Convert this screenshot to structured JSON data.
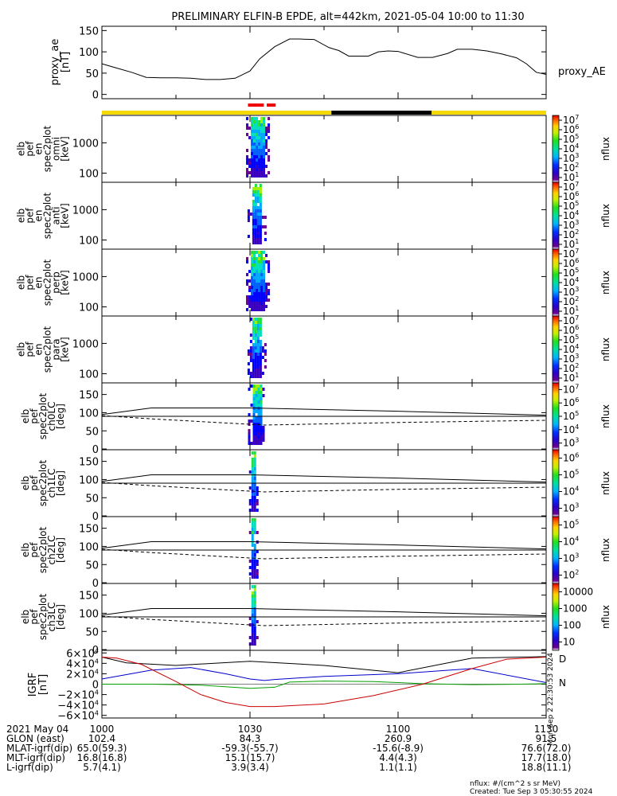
{
  "title": "PRELIMINARY ELFIN-B EPDE, alt=442km, 2021-05-04 10:00 to 11:30",
  "colors": {
    "bar_yellow": "#f5d800",
    "bar_black": "#000000",
    "bar_red": "#ee0000",
    "bx": "#0000cc",
    "by": "#00a000",
    "bz": "#cc0000",
    "bt": "#000000"
  },
  "chart_data": [
    {
      "type": "line",
      "id": "proxy_ae",
      "ylabel": [
        "proxy_ae",
        "[nT]"
      ],
      "ytick_labels": [
        "0",
        "50",
        "100",
        "150"
      ],
      "yticks": [
        0,
        50,
        100,
        150
      ],
      "ylim": [
        -10,
        160
      ],
      "xlim": [
        0,
        90
      ],
      "legend": "proxy_AE",
      "x": [
        0,
        3,
        6,
        9,
        12,
        15,
        18,
        21,
        24,
        27,
        30,
        32,
        35,
        38,
        40,
        43,
        46,
        48,
        50,
        54,
        56,
        58,
        60,
        64,
        67,
        70,
        72,
        75,
        78,
        81,
        84,
        86,
        88,
        90
      ],
      "values": [
        72,
        62,
        52,
        40,
        39,
        39,
        38,
        35,
        35,
        38,
        55,
        84,
        112,
        130,
        130,
        129,
        110,
        103,
        90,
        90,
        100,
        102,
        101,
        87,
        87,
        96,
        106,
        106,
        102,
        95,
        86,
        72,
        52,
        47
      ]
    },
    {
      "type": "heatmap",
      "id": "quality_bar",
      "segments": [
        {
          "from": 0,
          "to": 46.5,
          "color": "yellow"
        },
        {
          "from": 46.5,
          "to": 66.8,
          "color": "black"
        },
        {
          "from": 66.8,
          "to": 90,
          "color": "yellow"
        }
      ],
      "markers": [
        {
          "from": 29.6,
          "to": 32.8,
          "color": "red"
        },
        {
          "from": 33.4,
          "to": 35.2,
          "color": "red"
        }
      ]
    },
    {
      "type": "heatmap",
      "id": "omni",
      "ylabel": [
        "elb",
        "pef",
        "en",
        "spec2plot",
        "omni",
        "[keV]"
      ],
      "ytick_labels": [
        "100",
        "1000"
      ],
      "yticks": [
        100,
        1000
      ],
      "ylim_log": [
        50,
        8000
      ],
      "zlabel": "nflux",
      "ztick_labels": [
        "10",
        "10",
        "10",
        "10",
        "10",
        "10",
        "10"
      ],
      "ztick_exponents": [
        "1",
        "2",
        "3",
        "4",
        "5",
        "6",
        "7"
      ],
      "zlim_log": [
        10,
        10000000
      ],
      "x_range": [
        29.2,
        33.8
      ]
    },
    {
      "type": "heatmap",
      "id": "anti",
      "ylabel": [
        "elb",
        "pef",
        "en",
        "spec2plot",
        "anti",
        "[keV]"
      ],
      "ytick_labels": [
        "100",
        "1000"
      ],
      "yticks": [
        100,
        1000
      ],
      "ylim_log": [
        50,
        8000
      ],
      "zlabel": "nflux",
      "ztick_labels": [
        "10",
        "10",
        "10",
        "10",
        "10",
        "10",
        "10"
      ],
      "ztick_exponents": [
        "1",
        "2",
        "3",
        "4",
        "5",
        "6",
        "7"
      ],
      "zlim_log": [
        10,
        10000000
      ],
      "x_range": [
        29.5,
        33.2
      ]
    },
    {
      "type": "heatmap",
      "id": "perp",
      "ylabel": [
        "elb",
        "pef",
        "en",
        "spec2plot",
        "perp",
        "[keV]"
      ],
      "ytick_labels": [
        "100",
        "1000"
      ],
      "yticks": [
        100,
        1000
      ],
      "ylim_log": [
        50,
        8000
      ],
      "zlabel": "nflux",
      "ztick_labels": [
        "10",
        "10",
        "10",
        "10",
        "10",
        "10",
        "10"
      ],
      "ztick_exponents": [
        "1",
        "2",
        "3",
        "4",
        "5",
        "6",
        "7"
      ],
      "zlim_log": [
        10,
        10000000
      ],
      "x_range": [
        29.2,
        33.8
      ]
    },
    {
      "type": "heatmap",
      "id": "para",
      "ylabel": [
        "elb",
        "pef",
        "en",
        "spec2plot",
        "para",
        "[keV]"
      ],
      "ytick_labels": [
        "100",
        "1000"
      ],
      "yticks": [
        100,
        1000
      ],
      "ylim_log": [
        50,
        8000
      ],
      "zlabel": "nflux",
      "ztick_labels": [
        "10",
        "10",
        "10",
        "10",
        "10",
        "10",
        "10"
      ],
      "ztick_exponents": [
        "1",
        "2",
        "3",
        "4",
        "5",
        "6",
        "7"
      ],
      "zlim_log": [
        10,
        10000000
      ],
      "x_range": [
        29.5,
        33.2
      ]
    },
    {
      "type": "heatmap",
      "id": "ch0LC",
      "ylabel": [
        "elb",
        "pef",
        "spec2plot",
        "ch0LC",
        "[deg]"
      ],
      "ytick_labels": [
        "0",
        "50",
        "100",
        "150"
      ],
      "yticks": [
        0,
        50,
        100,
        150
      ],
      "ylim": [
        -2,
        182
      ],
      "zlabel": "nflux",
      "ztick_labels": [
        "10",
        "10",
        "10",
        "10",
        "10"
      ],
      "ztick_exponents": [
        "3",
        "4",
        "5",
        "6",
        "7"
      ],
      "zlim_log": [
        1000,
        10000000
      ],
      "x_range": [
        29.6,
        32.8
      ],
      "lc_solid": {
        "x": [
          0,
          10,
          30,
          60,
          90
        ],
        "values": [
          95,
          113,
          113,
          104,
          93
        ]
      },
      "lc_solid_anti": {
        "x": [
          0,
          90
        ],
        "values": [
          90,
          90
        ]
      },
      "lc_dashed": {
        "x": [
          0,
          10,
          30,
          33,
          60,
          90
        ],
        "values": [
          92,
          83,
          68,
          66,
          73,
          79
        ]
      }
    },
    {
      "type": "heatmap",
      "id": "ch1LC",
      "ylabel": [
        "elb",
        "pef",
        "spec2plot",
        "ch1LC",
        "[deg]"
      ],
      "ytick_labels": [
        "0",
        "50",
        "100",
        "150"
      ],
      "yticks": [
        0,
        50,
        100,
        150
      ],
      "ylim": [
        -2,
        182
      ],
      "zlabel": "nflux",
      "ztick_labels": [
        "10",
        "10",
        "10",
        "10"
      ],
      "ztick_exponents": [
        "3",
        "4",
        "5",
        "6"
      ],
      "zlim_log": [
        100,
        10000000
      ],
      "x_range": [
        29.8,
        31.8
      ],
      "lc_solid": {
        "x": [
          0,
          10,
          30,
          60,
          90
        ],
        "values": [
          95,
          113,
          113,
          104,
          93
        ]
      },
      "lc_solid_anti": {
        "x": [
          0,
          90
        ],
        "values": [
          90,
          90
        ]
      },
      "lc_dashed": {
        "x": [
          0,
          10,
          30,
          33,
          60,
          90
        ],
        "values": [
          92,
          83,
          68,
          66,
          73,
          79
        ]
      }
    },
    {
      "type": "heatmap",
      "id": "ch2LC",
      "ylabel": [
        "elb",
        "pef",
        "spec2plot",
        "ch2LC",
        "[deg]"
      ],
      "ytick_labels": [
        "0",
        "50",
        "100",
        "150"
      ],
      "yticks": [
        0,
        50,
        100,
        150
      ],
      "ylim": [
        -2,
        182
      ],
      "zlabel": "nflux",
      "ztick_labels": [
        "10",
        "10",
        "10",
        "10"
      ],
      "ztick_exponents": [
        "2",
        "3",
        "4",
        "5"
      ],
      "zlim_log": [
        100,
        1000000
      ],
      "x_range": [
        29.8,
        31.8
      ],
      "lc_solid": {
        "x": [
          0,
          10,
          30,
          60,
          90
        ],
        "values": [
          95,
          113,
          113,
          104,
          93
        ]
      },
      "lc_solid_anti": {
        "x": [
          0,
          90
        ],
        "values": [
          90,
          90
        ]
      },
      "lc_dashed": {
        "x": [
          0,
          10,
          30,
          33,
          60,
          90
        ],
        "values": [
          92,
          83,
          68,
          66,
          73,
          79
        ]
      }
    },
    {
      "type": "heatmap",
      "id": "ch3LC",
      "ylabel": [
        "elb",
        "pef",
        "spec2plot",
        "ch3LC",
        "[deg]"
      ],
      "ytick_labels": [
        "0",
        "50",
        "100",
        "150"
      ],
      "yticks": [
        0,
        50,
        100,
        150
      ],
      "ylim": [
        -2,
        182
      ],
      "zlabel": "nflux",
      "ztick_labels": [
        "10",
        "100",
        "1000",
        "10000"
      ],
      "zlim_log": [
        10,
        30000
      ],
      "x_range": [
        29.8,
        31.8
      ],
      "lc_solid": {
        "x": [
          0,
          10,
          30,
          60,
          90
        ],
        "values": [
          95,
          113,
          113,
          104,
          93
        ]
      },
      "lc_solid_anti": {
        "x": [
          0,
          90
        ],
        "values": [
          90,
          90
        ]
      },
      "lc_dashed": {
        "x": [
          0,
          10,
          30,
          33,
          60,
          90
        ],
        "values": [
          92,
          83,
          68,
          66,
          73,
          79
        ]
      }
    },
    {
      "type": "line",
      "id": "igrf",
      "ylabel": [
        "IGRF",
        "[nT]"
      ],
      "ytick_labels": [
        "−6×10",
        "−4×10",
        "−2×10",
        "0",
        "2×10",
        "4×10",
        "6×10"
      ],
      "ytick_exponents": [
        "4",
        "4",
        "4",
        "",
        "4",
        "4",
        "4"
      ],
      "yticks": [
        -60000,
        -40000,
        -20000,
        0,
        20000,
        40000,
        60000
      ],
      "ylim": [
        -65000,
        65000
      ],
      "xlim": [
        0,
        90
      ],
      "legend": [
        "D",
        "N"
      ],
      "series": [
        {
          "color": "bt",
          "x": [
            0,
            5,
            15,
            30,
            45,
            60,
            75,
            90
          ],
          "values": [
            52000,
            41000,
            36000,
            44000,
            36000,
            22000,
            50000,
            53000
          ]
        },
        {
          "color": "bx",
          "x": [
            0,
            10,
            18,
            25,
            30,
            33,
            35,
            45,
            60,
            75,
            90
          ],
          "values": [
            10000,
            27000,
            32000,
            20000,
            10000,
            7000,
            9000,
            15000,
            20000,
            30000,
            3000
          ]
        },
        {
          "color": "by",
          "x": [
            0,
            10,
            20,
            30,
            35,
            38,
            45,
            55,
            65,
            75,
            85,
            90
          ],
          "values": [
            0,
            0,
            -2000,
            -8000,
            -6000,
            4000,
            6000,
            5000,
            1000,
            -1000,
            0,
            1000
          ]
        },
        {
          "color": "bz",
          "x": [
            0,
            3,
            8,
            15,
            20,
            25,
            30,
            35,
            45,
            55,
            65,
            75,
            82,
            90
          ],
          "values": [
            52000,
            50000,
            38000,
            5000,
            -20000,
            -35000,
            -43000,
            -43000,
            -38000,
            -22000,
            0,
            30000,
            48000,
            52000
          ]
        }
      ]
    }
  ],
  "stamp": "Mon Sep  2 22:30:53 2024",
  "orbit_table": {
    "rows": [
      {
        "label": "2021 May 04",
        "values": [
          "1000",
          "1030",
          "1100",
          "1130"
        ]
      },
      {
        "label": "GLON (east)",
        "values": [
          "102.4",
          "84.3",
          "260.9",
          "91.5"
        ]
      },
      {
        "label": "MLAT-igrf(dip)",
        "values": [
          "65.0(59.3)",
          "-59.3(-55.7)",
          "-15.6(-8.9)",
          "76.6(72.0)"
        ]
      },
      {
        "label": "MLT-igrf(dip)",
        "values": [
          "16.8(16.8)",
          "15.1(15.7)",
          "4.4(4.3)",
          "17.7(18.0)"
        ]
      },
      {
        "label": "L-igrf(dip)",
        "values": [
          "5.7(4.1)",
          "3.9(3.4)",
          "1.1(1.1)",
          "18.8(11.1)"
        ]
      }
    ]
  },
  "footer": {
    "units": "nflux: #/(cm^2 s sr MeV)",
    "created": "Created: Tue Sep  3 05:30:55 2024"
  }
}
